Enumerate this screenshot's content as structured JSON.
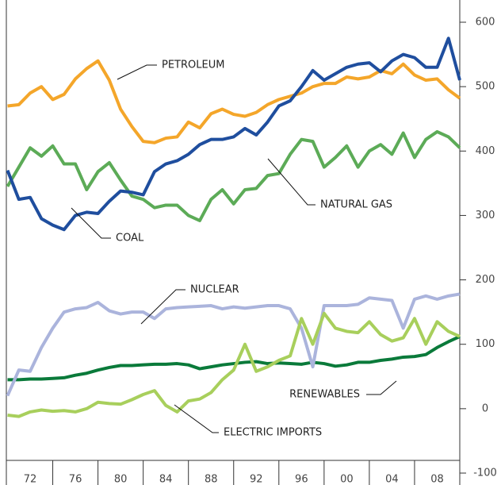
{
  "chart_data": {
    "type": "line",
    "x": [
      1970,
      1971,
      1972,
      1973,
      1974,
      1975,
      1976,
      1977,
      1978,
      1979,
      1980,
      1981,
      1982,
      1983,
      1984,
      1985,
      1986,
      1987,
      1988,
      1989,
      1990,
      1991,
      1992,
      1993,
      1994,
      1995,
      1996,
      1997,
      1998,
      1999,
      2000,
      2001,
      2002,
      2003,
      2004,
      2005,
      2006,
      2007,
      2008,
      2009,
      2010
    ],
    "xlim": [
      1970,
      2010
    ],
    "xticks": [
      {
        "value": 1972,
        "label": "72"
      },
      {
        "value": 1976,
        "label": "76"
      },
      {
        "value": 1980,
        "label": "80"
      },
      {
        "value": 1984,
        "label": "84"
      },
      {
        "value": 1988,
        "label": "88"
      },
      {
        "value": 1992,
        "label": "92"
      },
      {
        "value": 1996,
        "label": "96"
      },
      {
        "value": 2000,
        "label": "00"
      },
      {
        "value": 2004,
        "label": "04"
      },
      {
        "value": 2008,
        "label": "08"
      }
    ],
    "ylim": [
      -100,
      600
    ],
    "yticks": [
      -100,
      0,
      100,
      200,
      300,
      400,
      500,
      600
    ],
    "series": [
      {
        "name": "PETROLEUM",
        "color": "#f4a62a",
        "values": [
          470,
          472,
          490,
          500,
          480,
          488,
          512,
          528,
          540,
          510,
          465,
          438,
          415,
          413,
          420,
          422,
          445,
          436,
          458,
          465,
          457,
          454,
          460,
          472,
          480,
          485,
          490,
          500,
          505,
          505,
          515,
          512,
          515,
          525,
          520,
          535,
          518,
          510,
          512,
          495,
          482
        ]
      },
      {
        "name": "COAL",
        "color": "#1f4e9e",
        "values": [
          370,
          325,
          328,
          295,
          285,
          278,
          300,
          305,
          303,
          322,
          338,
          336,
          332,
          368,
          380,
          385,
          395,
          410,
          418,
          418,
          422,
          435,
          425,
          445,
          470,
          478,
          500,
          525,
          510,
          520,
          530,
          535,
          537,
          523,
          540,
          550,
          545,
          530,
          530,
          575,
          510
        ]
      },
      {
        "name": "NATURAL GAS",
        "color": "#5cab57",
        "values": [
          345,
          375,
          405,
          392,
          408,
          380,
          380,
          340,
          368,
          382,
          355,
          330,
          325,
          312,
          316,
          316,
          300,
          292,
          325,
          340,
          318,
          340,
          342,
          362,
          365,
          395,
          418,
          415,
          375,
          390,
          408,
          375,
          400,
          410,
          395,
          428,
          390,
          418,
          430,
          422,
          405
        ]
      },
      {
        "name": "NUCLEAR",
        "color": "#abb4dc",
        "values": [
          20,
          60,
          58,
          95,
          125,
          150,
          155,
          157,
          165,
          152,
          147,
          150,
          150,
          140,
          155,
          157,
          158,
          159,
          160,
          155,
          158,
          156,
          158,
          160,
          160,
          155,
          125,
          65,
          160,
          160,
          160,
          162,
          172,
          170,
          168,
          125,
          170,
          175,
          170,
          175,
          178
        ]
      },
      {
        "name": "RENEWABLES",
        "color": "#0a7a3a",
        "values": [
          45,
          45,
          46,
          46,
          47,
          48,
          52,
          55,
          60,
          64,
          67,
          67,
          68,
          69,
          69,
          70,
          68,
          62,
          65,
          68,
          70,
          72,
          73,
          70,
          71,
          70,
          69,
          72,
          70,
          66,
          68,
          72,
          72,
          75,
          77,
          80,
          81,
          84,
          95,
          104,
          112
        ]
      },
      {
        "name": "ELECTRIC IMPORTS",
        "color": "#a8cf5c",
        "values": [
          -10,
          -12,
          -5,
          -2,
          -4,
          -3,
          -5,
          0,
          10,
          8,
          7,
          14,
          22,
          28,
          5,
          -5,
          12,
          15,
          25,
          45,
          60,
          100,
          58,
          65,
          75,
          82,
          140,
          100,
          148,
          125,
          120,
          118,
          135,
          115,
          105,
          110,
          140,
          100,
          135,
          120,
          112
        ]
      }
    ]
  }
}
